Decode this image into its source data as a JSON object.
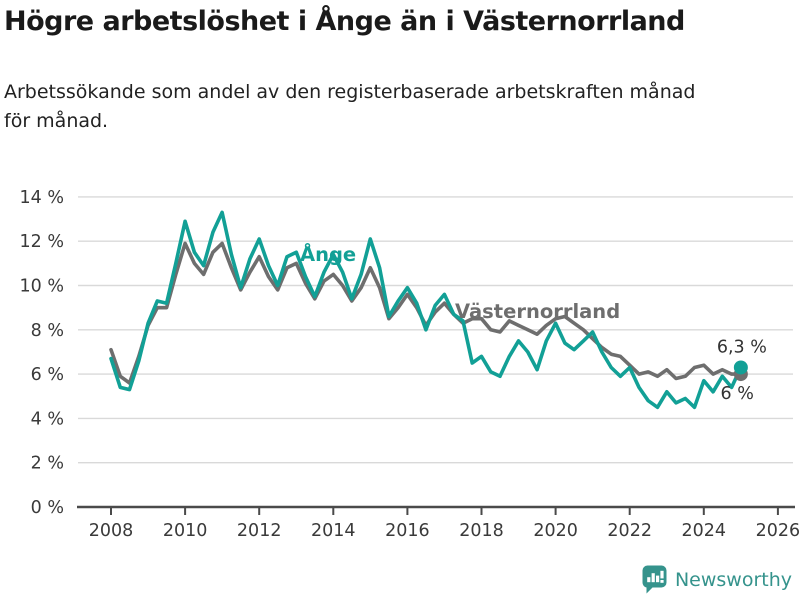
{
  "header": {
    "title": "Högre arbetslöshet i Ånge än i Västernorrland",
    "subtitle": "Arbetssökande som andel av den registerbaserade arbetskraften månad för månad."
  },
  "footer": {
    "brand": "Newsworthy",
    "logo_icon": "bar-chart-speech-bubble-icon"
  },
  "colors": {
    "ange_teal": "#12A096",
    "vasternorrland_gray": "#6E6E6E",
    "grid": "#D9D9D9",
    "axis": "#4A4A4A",
    "tick_text": "#3A3A3A",
    "annotation_text": "#333333",
    "title_text": "#1A1A1A",
    "brand_teal": "#35938C",
    "background": "#FFFFFF"
  },
  "chart_data": {
    "type": "line",
    "x_start_year": 2008,
    "x_step_years": 0.25,
    "x_tick_years": [
      2008,
      2010,
      2012,
      2014,
      2016,
      2018,
      2020,
      2022,
      2024,
      2026
    ],
    "x_tick_labels": [
      "2008",
      "2010",
      "2012",
      "2014",
      "2016",
      "2018",
      "2020",
      "2022",
      "2024",
      "2026"
    ],
    "y_tick_values": [
      0,
      2,
      4,
      6,
      8,
      10,
      12,
      14
    ],
    "y_tick_labels": [
      "0 %",
      "2 %",
      "4 %",
      "6 %",
      "8 %",
      "10 %",
      "12 %",
      "14 %"
    ],
    "ylim": [
      0,
      14.8
    ],
    "xlim": [
      2007.1,
      2026.5
    ],
    "grid": "horizontal",
    "legend_position": "inline-labels",
    "series": [
      {
        "name": "Västernorrland",
        "color": "#6E6E6E",
        "end_label": "6 %",
        "end_value": 6.0,
        "values": [
          7.1,
          5.9,
          5.6,
          6.8,
          8.2,
          9.0,
          9.0,
          10.5,
          11.9,
          11.0,
          10.5,
          11.5,
          11.9,
          10.8,
          9.8,
          10.6,
          11.3,
          10.4,
          9.8,
          10.8,
          11.0,
          10.1,
          9.4,
          10.2,
          10.5,
          10.0,
          9.3,
          9.9,
          10.8,
          9.9,
          8.5,
          9.0,
          9.6,
          9.0,
          8.2,
          8.8,
          9.2,
          8.7,
          8.3,
          8.5,
          8.5,
          8.0,
          7.9,
          8.4,
          8.2,
          8.0,
          7.8,
          8.2,
          8.5,
          8.6,
          8.3,
          8.0,
          7.6,
          7.2,
          6.9,
          6.8,
          6.4,
          6.0,
          6.1,
          5.9,
          6.2,
          5.8,
          5.9,
          6.3,
          6.4,
          6.0,
          6.2,
          6.0,
          6.0
        ]
      },
      {
        "name": "Ånge",
        "color": "#12A096",
        "end_label": "6,3 %",
        "end_value": 6.3,
        "values": [
          6.7,
          5.4,
          5.3,
          6.6,
          8.3,
          9.3,
          9.2,
          11.0,
          12.9,
          11.5,
          10.9,
          12.4,
          13.3,
          11.4,
          9.9,
          11.2,
          12.1,
          10.9,
          10.0,
          11.3,
          11.5,
          10.4,
          9.5,
          10.6,
          11.4,
          10.6,
          9.4,
          10.5,
          12.1,
          10.8,
          8.6,
          9.3,
          9.9,
          9.2,
          8.0,
          9.1,
          9.6,
          8.7,
          8.4,
          6.5,
          6.8,
          6.1,
          5.9,
          6.8,
          7.5,
          7.0,
          6.2,
          7.5,
          8.3,
          7.4,
          7.1,
          7.5,
          7.9,
          7.0,
          6.3,
          5.9,
          6.3,
          5.4,
          4.8,
          4.5,
          5.2,
          4.7,
          4.9,
          4.5,
          5.7,
          5.2,
          5.9,
          5.4,
          6.3
        ]
      }
    ]
  }
}
